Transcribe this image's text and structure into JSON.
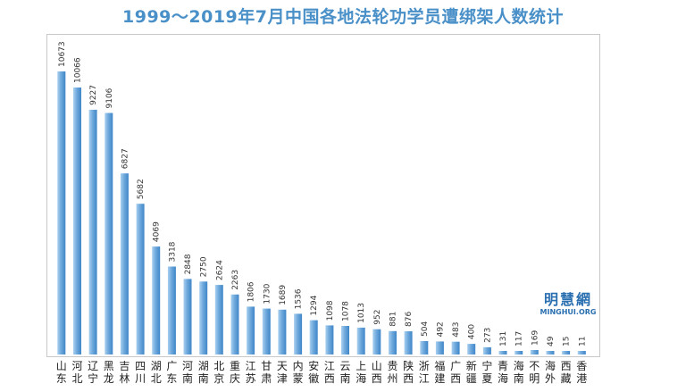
{
  "title": "1999～2019年7月中国各地法轮功学员遭绑架人数统计",
  "watermark": {
    "main": "明慧網",
    "sub": "MINGHUI.ORG"
  },
  "colors": {
    "title": "#4a90c8",
    "bar_light": "#a9d0f0",
    "bar_dark": "#3f86c8",
    "watermark": "#2a6fb0"
  },
  "chart_data": {
    "type": "bar",
    "title": "1999～2019年7月中国各地法轮功学员遭绑架人数统计",
    "xlabel": "",
    "ylabel": "",
    "grid": false,
    "categories": [
      "山东",
      "河北",
      "辽宁",
      "黑龙",
      "吉林",
      "四川",
      "湖北",
      "广东",
      "河南",
      "湖南",
      "北京",
      "重庆",
      "江苏",
      "甘肃",
      "天津",
      "内蒙",
      "安徽",
      "江西",
      "云南",
      "上海",
      "山西",
      "贵州",
      "陕西",
      "浙江",
      "福建",
      "广西",
      "新疆",
      "宁夏",
      "青海",
      "海南",
      "不明",
      "海外",
      "西藏",
      "香港"
    ],
    "values": [
      10673,
      10066,
      9227,
      9106,
      6827,
      5682,
      4069,
      3318,
      2848,
      2750,
      2624,
      2263,
      1806,
      1730,
      1689,
      1536,
      1294,
      1098,
      1078,
      1013,
      952,
      881,
      876,
      504,
      492,
      483,
      400,
      273,
      131,
      117,
      169,
      49,
      15,
      11
    ],
    "ylim": [
      0,
      10673
    ]
  }
}
